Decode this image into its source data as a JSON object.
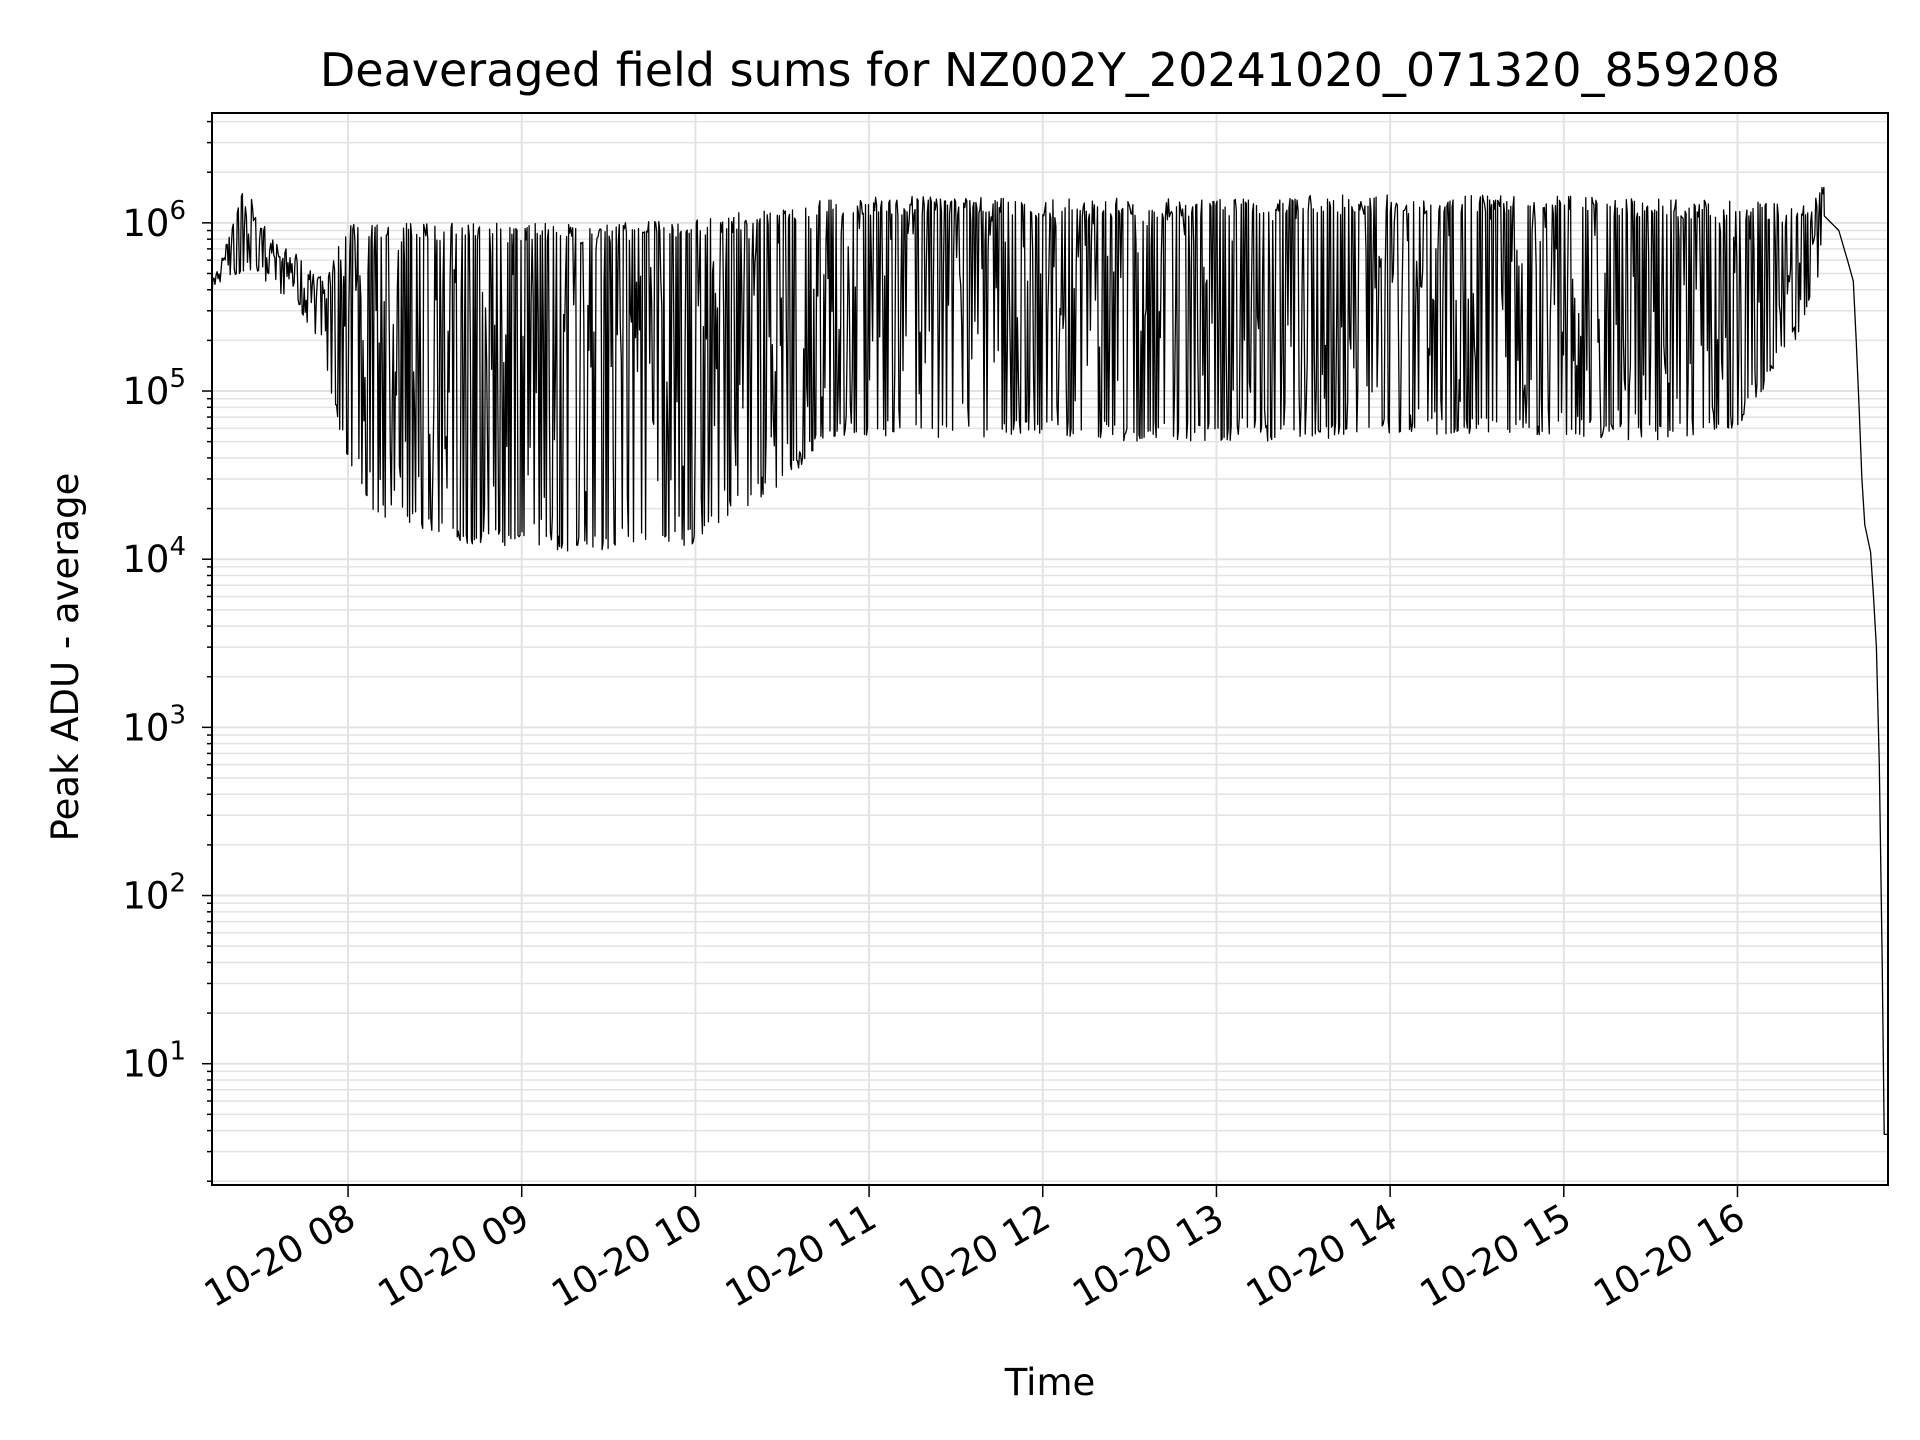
{
  "chart_data": {
    "type": "line",
    "title": "Deaveraged field sums for NZ002Y_20241020_071320_859208",
    "xlabel": "Time",
    "ylabel": "Peak ADU - average",
    "x_ticks": [
      "10-20 08",
      "10-20 09",
      "10-20 10",
      "10-20 11",
      "10-20 12",
      "10-20 13",
      "10-20 14",
      "10-20 15",
      "10-20 16"
    ],
    "y_scale": "log",
    "y_ticks": [
      {
        "base": "10",
        "exp": "1",
        "value": 10
      },
      {
        "base": "10",
        "exp": "2",
        "value": 100
      },
      {
        "base": "10",
        "exp": "3",
        "value": 1000
      },
      {
        "base": "10",
        "exp": "4",
        "value": 10000
      },
      {
        "base": "10",
        "exp": "5",
        "value": 100000
      },
      {
        "base": "10",
        "exp": "6",
        "value": 1000000
      }
    ],
    "xlim": [
      "2024-10-20 07:13",
      "2024-10-20 16:52"
    ],
    "ylim": [
      1.9,
      4500000
    ],
    "grid": true,
    "line_color": "#000000",
    "grid_color": "#e3e3e3",
    "series": [
      {
        "envelope_upper": [
          [
            "2024-10-20 07:13",
            480000
          ],
          [
            "2024-10-20 07:17",
            700000
          ],
          [
            "2024-10-20 07:22",
            1300000
          ],
          [
            "2024-10-20 07:25",
            2300000
          ],
          [
            "2024-10-20 07:28",
            1100000
          ],
          [
            "2024-10-20 07:35",
            800000
          ],
          [
            "2024-10-20 07:45",
            600000
          ],
          [
            "2024-10-20 07:52",
            450000
          ],
          [
            "2024-10-20 08:00",
            1000000
          ],
          [
            "2024-10-20 08:30",
            1000000
          ],
          [
            "2024-10-20 09:00",
            1000000
          ],
          [
            "2024-10-20 09:30",
            1000000
          ],
          [
            "2024-10-20 10:00",
            1050000
          ],
          [
            "2024-10-20 10:20",
            1200000
          ],
          [
            "2024-10-20 10:40",
            1400000
          ],
          [
            "2024-10-20 11:00",
            1450000
          ],
          [
            "2024-10-20 12:00",
            1400000
          ],
          [
            "2024-10-20 13:00",
            1400000
          ],
          [
            "2024-10-20 14:00",
            1500000
          ],
          [
            "2024-10-20 15:00",
            1450000
          ],
          [
            "2024-10-20 16:00",
            1350000
          ],
          [
            "2024-10-20 16:25",
            1300000
          ],
          [
            "2024-10-20 16:30",
            1800000
          ],
          [
            "2024-10-20 16:35",
            1000000
          ],
          [
            "2024-10-20 16:40",
            600000
          ],
          [
            "2024-10-20 16:45",
            300000
          ]
        ],
        "envelope_lower": [
          [
            "2024-10-20 07:13",
            420000
          ],
          [
            "2024-10-20 07:25",
            500000
          ],
          [
            "2024-10-20 07:40",
            350000
          ],
          [
            "2024-10-20 07:50",
            200000
          ],
          [
            "2024-10-20 08:00",
            35000
          ],
          [
            "2024-10-20 08:10",
            18000
          ],
          [
            "2024-10-20 08:25",
            15000
          ],
          [
            "2024-10-20 08:40",
            12000
          ],
          [
            "2024-10-20 09:00",
            12000
          ],
          [
            "2024-10-20 09:20",
            11000
          ],
          [
            "2024-10-20 09:40",
            12000
          ],
          [
            "2024-10-20 10:00",
            12000
          ],
          [
            "2024-10-20 10:10",
            17000
          ],
          [
            "2024-10-20 10:30",
            28000
          ],
          [
            "2024-10-20 10:45",
            50000
          ],
          [
            "2024-10-20 11:00",
            55000
          ],
          [
            "2024-10-20 11:30",
            50000
          ],
          [
            "2024-10-20 12:00",
            55000
          ],
          [
            "2024-10-20 12:30",
            50000
          ],
          [
            "2024-10-20 13:00",
            50000
          ],
          [
            "2024-10-20 13:30",
            50000
          ],
          [
            "2024-10-20 14:00",
            55000
          ],
          [
            "2024-10-20 14:30",
            55000
          ],
          [
            "2024-10-20 15:00",
            55000
          ],
          [
            "2024-10-20 15:30",
            50000
          ],
          [
            "2024-10-20 16:00",
            60000
          ],
          [
            "2024-10-20 16:20",
            200000
          ],
          [
            "2024-10-20 16:30",
            500000
          ]
        ],
        "tail": [
          [
            "2024-10-20 16:30",
            1100000
          ],
          [
            "2024-10-20 16:35",
            900000
          ],
          [
            "2024-10-20 16:38",
            600000
          ],
          [
            "2024-10-20 16:40",
            450000
          ],
          [
            "2024-10-20 16:41",
            200000
          ],
          [
            "2024-10-20 16:42",
            80000
          ],
          [
            "2024-10-20 16:43",
            30000
          ],
          [
            "2024-10-20 16:44",
            16000
          ],
          [
            "2024-10-20 16:46",
            11000
          ],
          [
            "2024-10-20 16:47",
            6000
          ],
          [
            "2024-10-20 16:48",
            3000
          ],
          [
            "2024-10-20 16:49",
            600
          ],
          [
            "2024-10-20 16:50",
            40
          ],
          [
            "2024-10-20 16:50",
            3.8
          ],
          [
            "2024-10-20 16:52",
            3.8
          ]
        ]
      }
    ]
  }
}
